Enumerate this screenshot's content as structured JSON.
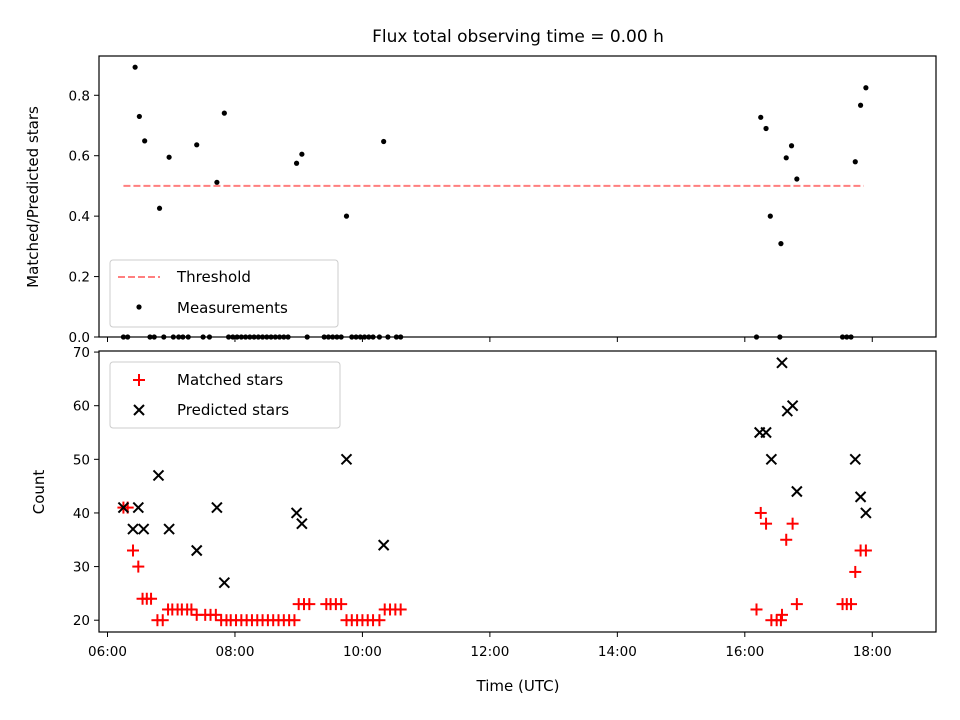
{
  "chart_data": [
    {
      "type": "scatter",
      "title": "Flux total observing time = 0.00 h",
      "xlabel": "",
      "ylabel": "Matched/Predicted stars",
      "ylim": [
        0,
        0.93
      ],
      "yticks": [
        "0.0",
        "0.2",
        "0.4",
        "0.6",
        "0.8"
      ],
      "ytick_values": [
        0,
        0.2,
        0.4,
        0.6,
        0.8
      ],
      "legend_position": "lower-left",
      "threshold": {
        "name": "Threshold",
        "value": 0.5,
        "x_start": "06:15",
        "x_end": "17:52",
        "color": "#ff7f7f"
      },
      "series": [
        {
          "name": "Measurements",
          "color": "#000000",
          "points": [
            [
              "06:15",
              0.0
            ],
            [
              "06:19",
              0.0
            ],
            [
              "06:26",
              0.893
            ],
            [
              "06:30",
              0.73
            ],
            [
              "06:35",
              0.649
            ],
            [
              "06:40",
              0.0
            ],
            [
              "06:44",
              0.0
            ],
            [
              "06:49",
              0.426
            ],
            [
              "06:53",
              0.0
            ],
            [
              "06:58",
              0.595
            ],
            [
              "07:02",
              0.0
            ],
            [
              "07:07",
              0.0
            ],
            [
              "07:11",
              0.0
            ],
            [
              "07:16",
              0.0
            ],
            [
              "07:24",
              0.636
            ],
            [
              "07:30",
              0.0
            ],
            [
              "07:36",
              0.0
            ],
            [
              "07:43",
              0.512
            ],
            [
              "07:50",
              0.741
            ],
            [
              "07:54",
              0.0
            ],
            [
              "07:58",
              0.0
            ],
            [
              "08:02",
              0.0
            ],
            [
              "08:06",
              0.0
            ],
            [
              "08:10",
              0.0
            ],
            [
              "08:14",
              0.0
            ],
            [
              "08:18",
              0.0
            ],
            [
              "08:22",
              0.0
            ],
            [
              "08:26",
              0.0
            ],
            [
              "08:30",
              0.0
            ],
            [
              "08:34",
              0.0
            ],
            [
              "08:38",
              0.0
            ],
            [
              "08:42",
              0.0
            ],
            [
              "08:46",
              0.0
            ],
            [
              "08:50",
              0.0
            ],
            [
              "08:58",
              0.575
            ],
            [
              "09:03",
              0.605
            ],
            [
              "09:08",
              0.0
            ],
            [
              "09:24",
              0.0
            ],
            [
              "09:28",
              0.0
            ],
            [
              "09:32",
              0.0
            ],
            [
              "09:36",
              0.0
            ],
            [
              "09:40",
              0.0
            ],
            [
              "09:45",
              0.4
            ],
            [
              "09:50",
              0.0
            ],
            [
              "09:54",
              0.0
            ],
            [
              "09:58",
              0.0
            ],
            [
              "10:02",
              0.0
            ],
            [
              "10:06",
              0.0
            ],
            [
              "10:10",
              0.0
            ],
            [
              "10:16",
              0.0
            ],
            [
              "10:20",
              0.647
            ],
            [
              "10:24",
              0.0
            ],
            [
              "10:32",
              0.0
            ],
            [
              "10:36",
              0.0
            ],
            [
              "16:11",
              0.0
            ],
            [
              "16:15",
              0.727
            ],
            [
              "16:20",
              0.69
            ],
            [
              "16:24",
              0.4
            ],
            [
              "16:33",
              0.0
            ],
            [
              "16:34",
              0.309
            ],
            [
              "16:39",
              0.593
            ],
            [
              "16:44",
              0.633
            ],
            [
              "16:49",
              0.523
            ],
            [
              "17:32",
              0.0
            ],
            [
              "17:36",
              0.0
            ],
            [
              "17:40",
              0.0
            ],
            [
              "17:44",
              0.58
            ],
            [
              "17:49",
              0.767
            ],
            [
              "17:54",
              0.825
            ]
          ]
        }
      ]
    },
    {
      "type": "scatter",
      "title": "",
      "xlabel": "Time (UTC)",
      "ylabel": "Count",
      "xlim": [
        "05:52",
        "19:00"
      ],
      "xticks": [
        "06:00",
        "08:00",
        "10:00",
        "12:00",
        "14:00",
        "16:00",
        "18:00"
      ],
      "ylim": [
        17.8,
        70.2
      ],
      "yticks": [
        "20",
        "30",
        "40",
        "50",
        "60",
        "70"
      ],
      "ytick_values": [
        20,
        30,
        40,
        50,
        60,
        70
      ],
      "legend_position": "top-left",
      "series": [
        {
          "name": "Matched stars",
          "marker": "plus",
          "color": "#ff0000",
          "points": [
            [
              "06:15",
              41
            ],
            [
              "06:19",
              41
            ],
            [
              "06:24",
              33
            ],
            [
              "06:29",
              30
            ],
            [
              "06:33",
              24
            ],
            [
              "06:37",
              24
            ],
            [
              "06:41",
              24
            ],
            [
              "06:47",
              20
            ],
            [
              "06:52",
              20
            ],
            [
              "06:57",
              22
            ],
            [
              "07:01",
              22
            ],
            [
              "07:06",
              22
            ],
            [
              "07:10",
              22
            ],
            [
              "07:15",
              22
            ],
            [
              "07:19",
              22
            ],
            [
              "07:24",
              21
            ],
            [
              "07:32",
              21
            ],
            [
              "07:37",
              21
            ],
            [
              "07:42",
              21
            ],
            [
              "07:47",
              20
            ],
            [
              "07:52",
              20
            ],
            [
              "07:56",
              20
            ],
            [
              "08:01",
              20
            ],
            [
              "08:06",
              20
            ],
            [
              "08:11",
              20
            ],
            [
              "08:16",
              20
            ],
            [
              "08:21",
              20
            ],
            [
              "08:26",
              20
            ],
            [
              "08:31",
              20
            ],
            [
              "08:36",
              20
            ],
            [
              "08:41",
              20
            ],
            [
              "08:46",
              20
            ],
            [
              "08:51",
              20
            ],
            [
              "08:56",
              20
            ],
            [
              "09:00",
              23
            ],
            [
              "09:05",
              23
            ],
            [
              "09:10",
              23
            ],
            [
              "09:26",
              23
            ],
            [
              "09:30",
              23
            ],
            [
              "09:35",
              23
            ],
            [
              "09:40",
              23
            ],
            [
              "09:45",
              20
            ],
            [
              "09:50",
              20
            ],
            [
              "09:55",
              20
            ],
            [
              "10:00",
              20
            ],
            [
              "10:05",
              20
            ],
            [
              "10:10",
              20
            ],
            [
              "10:16",
              20
            ],
            [
              "10:21",
              22
            ],
            [
              "10:26",
              22
            ],
            [
              "10:31",
              22
            ],
            [
              "10:36",
              22
            ],
            [
              "16:11",
              22
            ],
            [
              "16:15",
              40
            ],
            [
              "16:20",
              38
            ],
            [
              "16:25",
              20
            ],
            [
              "16:30",
              20
            ],
            [
              "16:34",
              20
            ],
            [
              "16:35",
              21
            ],
            [
              "16:39",
              35
            ],
            [
              "16:45",
              38
            ],
            [
              "16:49",
              23
            ],
            [
              "17:32",
              23
            ],
            [
              "17:36",
              23
            ],
            [
              "17:40",
              23
            ],
            [
              "17:44",
              29
            ],
            [
              "17:49",
              33
            ],
            [
              "17:54",
              33
            ]
          ]
        },
        {
          "name": "Predicted stars",
          "marker": "x",
          "color": "#000000",
          "points": [
            [
              "06:15",
              41
            ],
            [
              "06:24",
              37
            ],
            [
              "06:29",
              41
            ],
            [
              "06:34",
              37
            ],
            [
              "06:48",
              47
            ],
            [
              "06:58",
              37
            ],
            [
              "07:24",
              33
            ],
            [
              "07:43",
              41
            ],
            [
              "07:50",
              27
            ],
            [
              "08:58",
              40
            ],
            [
              "09:03",
              38
            ],
            [
              "09:45",
              50
            ],
            [
              "10:20",
              34
            ],
            [
              "16:14",
              55
            ],
            [
              "16:20",
              55
            ],
            [
              "16:25",
              50
            ],
            [
              "16:35",
              68
            ],
            [
              "16:40",
              59
            ],
            [
              "16:45",
              60
            ],
            [
              "16:49",
              44
            ],
            [
              "17:44",
              50
            ],
            [
              "17:49",
              43
            ],
            [
              "17:54",
              40
            ]
          ]
        }
      ]
    }
  ]
}
